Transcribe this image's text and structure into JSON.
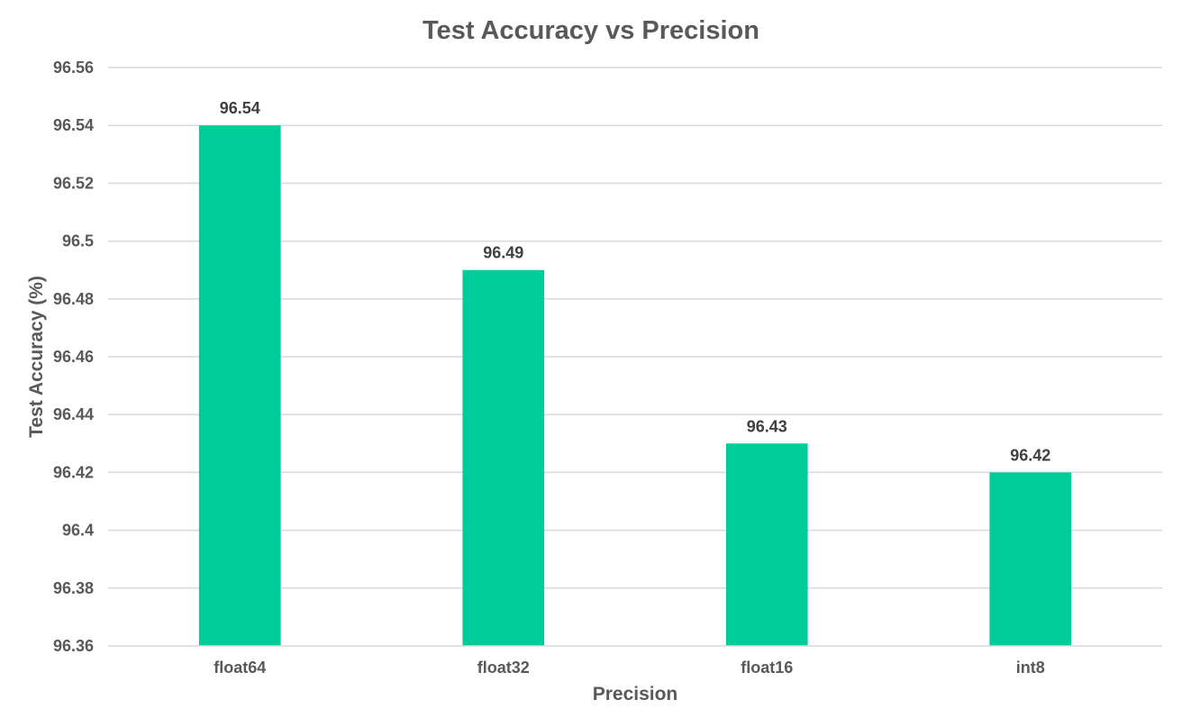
{
  "chart_data": {
    "type": "bar",
    "title": "Test Accuracy vs Precision",
    "xlabel": "Precision",
    "ylabel": "Test Accuracy (%)",
    "categories": [
      "float64",
      "float32",
      "float16",
      "int8"
    ],
    "values": [
      96.54,
      96.49,
      96.43,
      96.42
    ],
    "data_labels": [
      "96.54",
      "96.49",
      "96.43",
      "96.42"
    ],
    "ylim": [
      96.36,
      96.56
    ],
    "y_ticks": [
      96.36,
      96.38,
      96.4,
      96.42,
      96.44,
      96.46,
      96.48,
      96.5,
      96.52,
      96.54,
      96.56
    ],
    "y_tick_labels": [
      "96.36",
      "96.38",
      "96.4",
      "96.42",
      "96.44",
      "96.46",
      "96.48",
      "96.5",
      "96.52",
      "96.54",
      "96.56"
    ],
    "grid": true,
    "legend": "none",
    "colors": {
      "bar": "#00cc99",
      "grid": "#d9d9d9",
      "axis_line": "#d9d9d9",
      "title": "#595959",
      "axis_title": "#595959",
      "tick_label": "#595959",
      "data_label": "#404040"
    }
  }
}
